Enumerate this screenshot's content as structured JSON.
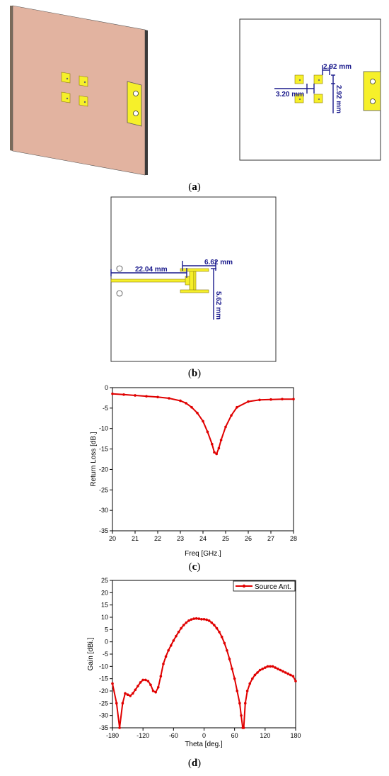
{
  "captions": {
    "a": "a",
    "b": "b",
    "c": "c",
    "d": "d"
  },
  "panel_a": {
    "dims": {
      "spacing_h": "2.92 mm",
      "spacing_v": "2.92 mm",
      "patch_offset": "3.20 mm"
    },
    "colors": {
      "substrate": "#e2b3a0",
      "patch": "#f6f02a",
      "dimension": "#1a1a8c"
    }
  },
  "panel_b": {
    "dims": {
      "feed_length": "22.04 mm",
      "slot_width": "6.62 mm",
      "slot_height": "5.62 mm"
    },
    "colors": {
      "feed": "#f6f02a",
      "dimension": "#1a1a8c"
    }
  },
  "chart_data": [
    {
      "type": "line",
      "xlabel": "Freq [GHz.]",
      "ylabel": "Return Loss [dB.]",
      "xlim": [
        20,
        28
      ],
      "ylim": [
        -35,
        0
      ],
      "x_ticks": [
        "20",
        "21",
        "22",
        "23",
        "24",
        "25",
        "26",
        "27",
        "28"
      ],
      "y_ticks": [
        "0",
        "-5",
        "-10",
        "-15",
        "-20",
        "-25",
        "-30",
        "-35"
      ],
      "color": "#e00000",
      "x": [
        20,
        20.5,
        21,
        21.5,
        22,
        22.5,
        23,
        23.25,
        23.5,
        23.75,
        24,
        24.2,
        24.4,
        24.5,
        24.6,
        24.7,
        24.8,
        25,
        25.25,
        25.5,
        26,
        26.5,
        27,
        27.5,
        28
      ],
      "y": [
        -1.5,
        -1.7,
        -1.9,
        -2.1,
        -2.3,
        -2.6,
        -3.2,
        -3.8,
        -4.8,
        -6.2,
        -8.2,
        -10.8,
        -13.8,
        -15.8,
        -16.2,
        -14.8,
        -12.8,
        -9.6,
        -6.8,
        -4.8,
        -3.4,
        -3.0,
        -2.9,
        -2.8,
        -2.8
      ]
    },
    {
      "type": "line",
      "xlabel": "Theta [deg.]",
      "ylabel": "Gain [dBi.]",
      "xlim": [
        -180,
        180
      ],
      "ylim": [
        -35,
        25
      ],
      "x_ticks": [
        "-180",
        "-120",
        "-60",
        "0",
        "60",
        "120",
        "180"
      ],
      "y_ticks": [
        "25",
        "20",
        "15",
        "10",
        "5",
        "0",
        "-5",
        "-10",
        "-15",
        "-20",
        "-25",
        "-30",
        "-35"
      ],
      "legend": "top-right",
      "color": "#e00000",
      "series": [
        {
          "name": "Source Ant.",
          "x": [
            -180,
            -172,
            -166,
            -160,
            -155,
            -150,
            -145,
            -140,
            -135,
            -130,
            -125,
            -120,
            -115,
            -110,
            -105,
            -100,
            -95,
            -90,
            -85,
            -80,
            -75,
            -70,
            -65,
            -60,
            -55,
            -50,
            -45,
            -40,
            -35,
            -30,
            -25,
            -20,
            -15,
            -10,
            -5,
            0,
            5,
            10,
            15,
            20,
            25,
            30,
            35,
            40,
            45,
            50,
            55,
            60,
            65,
            70,
            73,
            76,
            78,
            81,
            85,
            90,
            95,
            100,
            105,
            110,
            115,
            120,
            125,
            130,
            135,
            140,
            145,
            150,
            155,
            160,
            165,
            170,
            175,
            180
          ],
          "y": [
            -17,
            -25,
            -35,
            -25,
            -21,
            -21.5,
            -22,
            -21,
            -19.5,
            -18,
            -16.5,
            -15.5,
            -15.5,
            -16,
            -17.5,
            -20,
            -20.5,
            -18.5,
            -14,
            -9,
            -6,
            -3.5,
            -1.5,
            0.5,
            2.3,
            4,
            5.5,
            6.8,
            7.8,
            8.6,
            9.1,
            9.4,
            9.5,
            9.4,
            9.2,
            9.2,
            9,
            8.6,
            7.8,
            6.8,
            5.5,
            4,
            2,
            -0.5,
            -3.5,
            -7,
            -11,
            -15,
            -20,
            -25,
            -30,
            -35,
            -35,
            -25,
            -20,
            -17,
            -15,
            -13.5,
            -12.5,
            -11.5,
            -11,
            -10.5,
            -10,
            -10,
            -10,
            -10.5,
            -11,
            -11.5,
            -12,
            -12.5,
            -13,
            -13.5,
            -14,
            -16
          ]
        }
      ]
    }
  ]
}
